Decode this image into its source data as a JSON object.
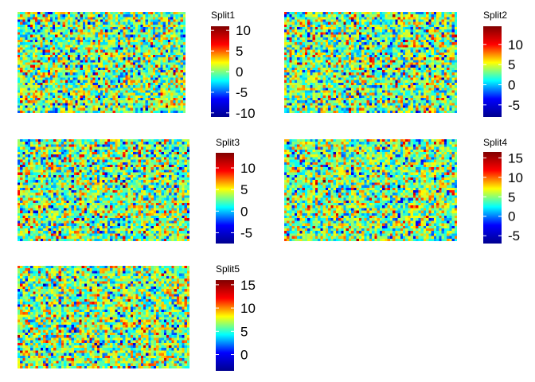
{
  "chart_data": [
    {
      "type": "heatmap",
      "title": "Split1",
      "grid": false,
      "legend": "right",
      "rows": 40,
      "cols": 67,
      "value_range": [
        -11,
        11
      ],
      "colorbar": {
        "min": -11,
        "max": 11,
        "ticks": [
          -10,
          -5,
          0,
          5,
          10
        ]
      },
      "seed": 101
    },
    {
      "type": "heatmap",
      "title": "Split2",
      "grid": false,
      "legend": "right",
      "rows": 40,
      "cols": 67,
      "value_range": [
        -8,
        14.5
      ],
      "colorbar": {
        "min": -8,
        "max": 14.5,
        "ticks": [
          -5,
          0,
          5,
          10
        ]
      },
      "seed": 202
    },
    {
      "type": "heatmap",
      "title": "Split3",
      "grid": false,
      "legend": "right",
      "rows": 40,
      "cols": 67,
      "value_range": [
        -7.5,
        13.5
      ],
      "colorbar": {
        "min": -7.5,
        "max": 13.5,
        "ticks": [
          -5,
          0,
          5,
          10
        ]
      },
      "seed": 303
    },
    {
      "type": "heatmap",
      "title": "Split4",
      "grid": false,
      "legend": "right",
      "rows": 40,
      "cols": 67,
      "value_range": [
        -7,
        16.5
      ],
      "colorbar": {
        "min": -7,
        "max": 16.5,
        "ticks": [
          -5,
          0,
          5,
          10,
          15
        ]
      },
      "seed": 404
    },
    {
      "type": "heatmap",
      "title": "Split5",
      "grid": false,
      "legend": "right",
      "rows": 40,
      "cols": 67,
      "value_range": [
        -3.5,
        16
      ],
      "colorbar": {
        "min": -3.5,
        "max": 16,
        "ticks": [
          0,
          5,
          10,
          15
        ]
      },
      "seed": 505
    }
  ],
  "colors": {
    "colormap": [
      "#00008f",
      "#0000ff",
      "#00ffff",
      "#ffff00",
      "#ff0000",
      "#800000"
    ],
    "background": "#ffffff",
    "text": "#000000"
  }
}
